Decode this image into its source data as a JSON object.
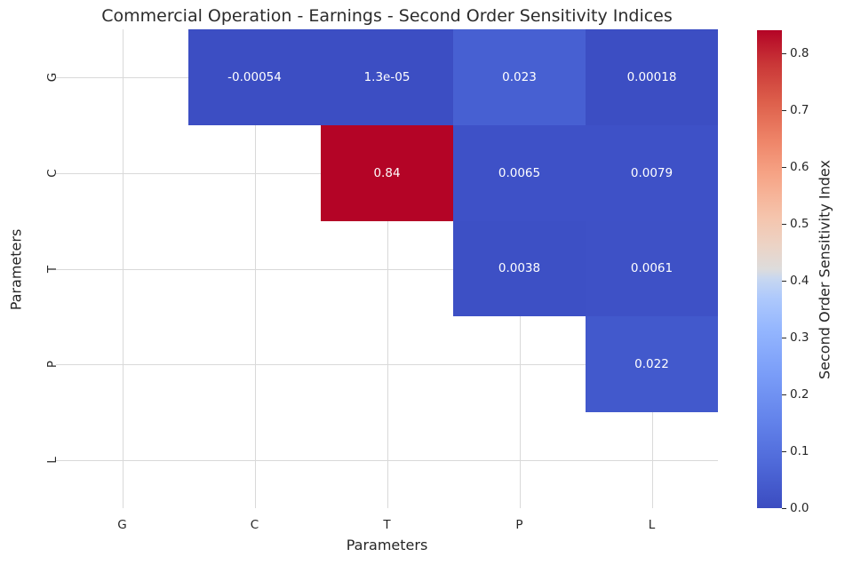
{
  "title": "Commercial Operation - Earnings - Second Order Sensitivity Indices",
  "chart_data": {
    "type": "heatmap",
    "title": "Commercial Operation - Earnings - Second Order Sensitivity Indices",
    "xlabel": "Parameters",
    "ylabel": "Parameters",
    "x_categories": [
      "G",
      "C",
      "T",
      "P",
      "L"
    ],
    "y_categories": [
      "G",
      "C",
      "T",
      "P",
      "L"
    ],
    "mask": "lower-triangle-and-diagonal-blank",
    "grid": true,
    "grid_color": "#d9d9d9",
    "annotation_text_color": "#ffffff",
    "cells": [
      {
        "row": "G",
        "col": "C",
        "value": -0.00054,
        "label": "-0.00054",
        "color": "#3c4ec3"
      },
      {
        "row": "G",
        "col": "T",
        "value": 1.3e-05,
        "label": "1.3e-05",
        "color": "#3c4ec3"
      },
      {
        "row": "G",
        "col": "P",
        "value": 0.023,
        "label": "0.023",
        "color": "#4760d2"
      },
      {
        "row": "G",
        "col": "L",
        "value": 0.00018,
        "label": "0.00018",
        "color": "#3c4ec3"
      },
      {
        "row": "C",
        "col": "T",
        "value": 0.84,
        "label": "0.84",
        "color": "#b40426"
      },
      {
        "row": "C",
        "col": "P",
        "value": 0.0065,
        "label": "0.0065",
        "color": "#3e51c7"
      },
      {
        "row": "C",
        "col": "L",
        "value": 0.0079,
        "label": "0.0079",
        "color": "#3e51c7"
      },
      {
        "row": "T",
        "col": "P",
        "value": 0.0038,
        "label": "0.0038",
        "color": "#3d50c5"
      },
      {
        "row": "T",
        "col": "L",
        "value": 0.0061,
        "label": "0.0061",
        "color": "#3e51c6"
      },
      {
        "row": "P",
        "col": "L",
        "value": 0.022,
        "label": "0.022",
        "color": "#4259cc"
      }
    ],
    "colorbar": {
      "label": "Second Order Sensitivity Index",
      "colormap": "coolwarm",
      "vmin": 0.0,
      "vmax": 0.84,
      "ticks": [
        0.8,
        0.7,
        0.6,
        0.5,
        0.4,
        0.3,
        0.2,
        0.1,
        0.0
      ]
    }
  }
}
